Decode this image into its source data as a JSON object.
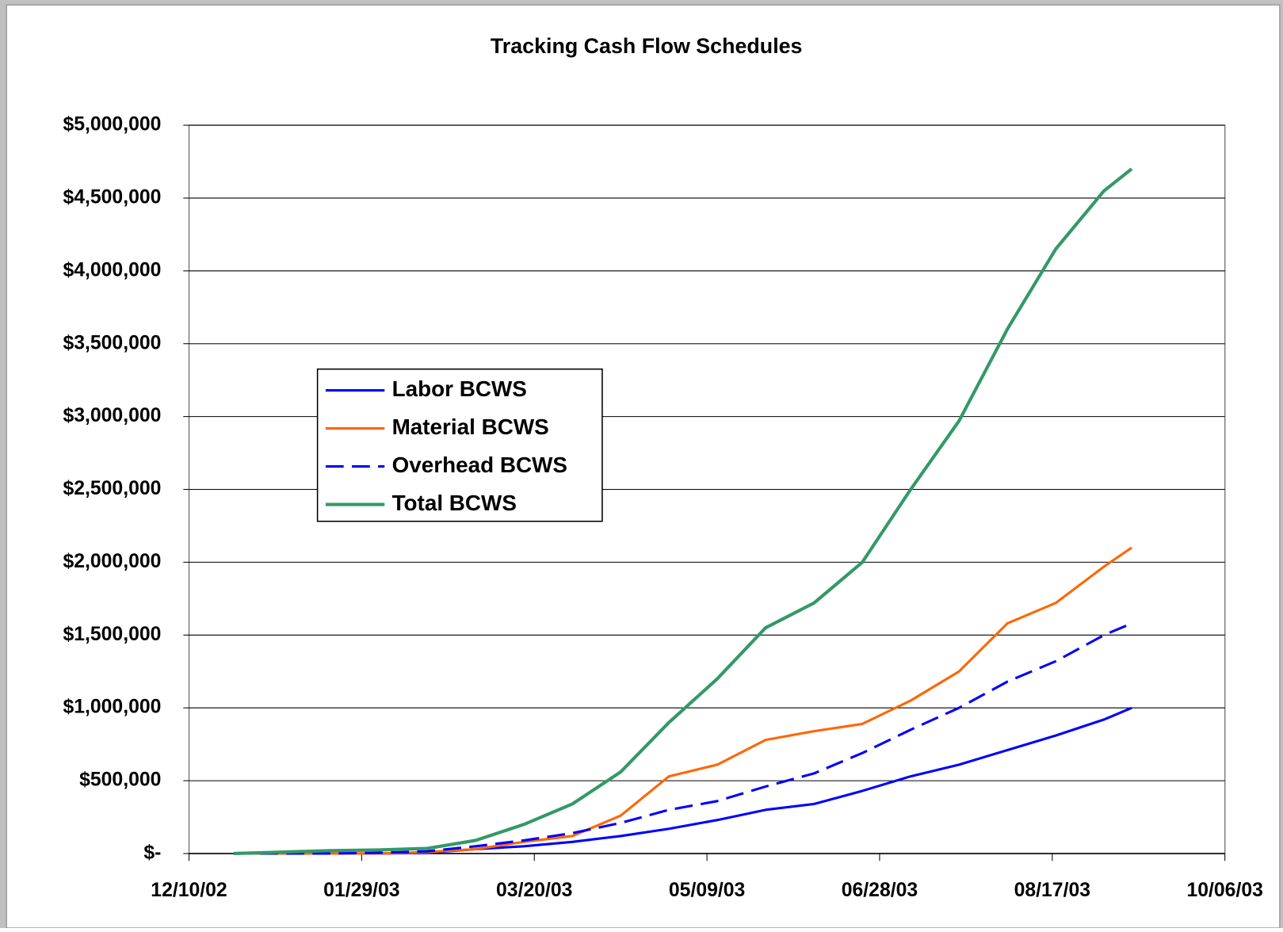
{
  "chart_data": {
    "type": "line",
    "title": "Tracking Cash Flow Schedules",
    "x": [
      "12/23/02",
      "01/06/03",
      "01/20/03",
      "02/03/03",
      "02/17/03",
      "03/03/03",
      "03/17/03",
      "03/31/03",
      "04/14/03",
      "04/28/03",
      "05/12/03",
      "05/26/03",
      "06/09/03",
      "06/23/03",
      "07/07/03",
      "07/21/03",
      "08/04/03",
      "08/18/03",
      "09/01/03",
      "09/09/03"
    ],
    "series": [
      {
        "name": "Labor BCWS",
        "color": "#0000ff",
        "dash": false,
        "values": [
          0,
          0,
          0,
          0,
          5000,
          30000,
          50000,
          80000,
          120000,
          170000,
          230000,
          300000,
          340000,
          430000,
          530000,
          610000,
          710000,
          810000,
          920000,
          1000000
        ]
      },
      {
        "name": "Material BCWS",
        "color": "#ff6600",
        "dash": false,
        "values": [
          0,
          0,
          0,
          0,
          10000,
          30000,
          80000,
          120000,
          260000,
          530000,
          610000,
          780000,
          840000,
          890000,
          1050000,
          1250000,
          1580000,
          1720000,
          1970000,
          2100000
        ]
      },
      {
        "name": "Overhead BCWS",
        "color": "#0000ff",
        "dash": true,
        "values": [
          0,
          0,
          0,
          5000,
          15000,
          50000,
          90000,
          140000,
          210000,
          300000,
          360000,
          460000,
          550000,
          690000,
          850000,
          1000000,
          1180000,
          1320000,
          1500000,
          1580000
        ]
      },
      {
        "name": "Total BCWS",
        "color": "#339966",
        "dash": false,
        "values": [
          0,
          10000,
          20000,
          25000,
          35000,
          90000,
          200000,
          340000,
          560000,
          900000,
          1200000,
          1550000,
          1720000,
          2000000,
          2500000,
          2970000,
          3600000,
          4150000,
          4550000,
          4700000
        ]
      }
    ],
    "xlim": [
      "12/10/02",
      "10/06/03"
    ],
    "xticks": [
      "12/10/02",
      "01/29/03",
      "03/20/03",
      "05/09/03",
      "06/28/03",
      "08/17/03",
      "10/06/03"
    ],
    "ylim": [
      0,
      5000000
    ],
    "yticks": [
      {
        "value": 0,
        "label": "$-"
      },
      {
        "value": 500000,
        "label": "$500,000"
      },
      {
        "value": 1000000,
        "label": "$1,000,000"
      },
      {
        "value": 1500000,
        "label": "$1,500,000"
      },
      {
        "value": 2000000,
        "label": "$2,000,000"
      },
      {
        "value": 2500000,
        "label": "$2,500,000"
      },
      {
        "value": 3000000,
        "label": "$3,000,000"
      },
      {
        "value": 3500000,
        "label": "$3,500,000"
      },
      {
        "value": 4000000,
        "label": "$4,000,000"
      },
      {
        "value": 4500000,
        "label": "$4,500,000"
      },
      {
        "value": 5000000,
        "label": "$5,000,000"
      }
    ],
    "grid": true,
    "legend": "left"
  }
}
